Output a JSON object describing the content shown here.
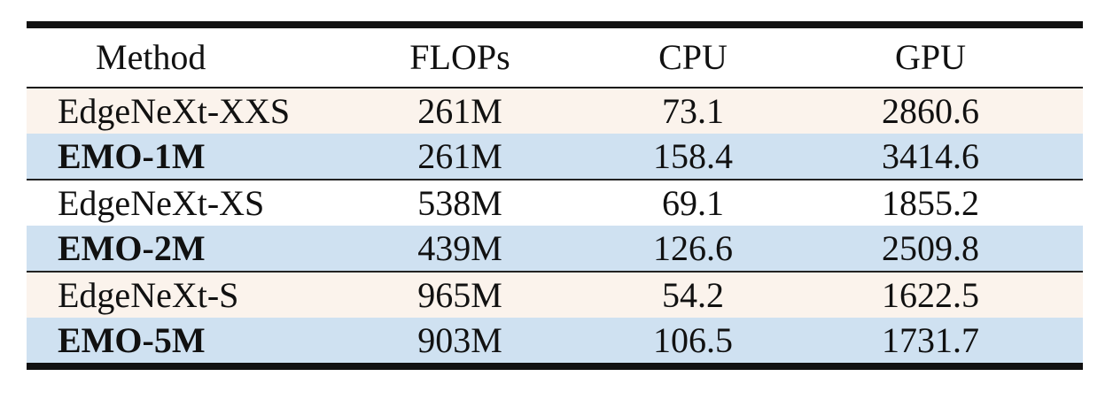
{
  "columns": [
    "Method",
    "FLOPs",
    "CPU",
    "GPU"
  ],
  "rows": [
    {
      "method": "EdgeNeXt-XXS",
      "flops": "261M",
      "cpu": "73.1",
      "gpu": "2860.6",
      "bold": false,
      "bg": "#fbf3ec"
    },
    {
      "method": "EMO-1M",
      "flops": "261M",
      "cpu": "158.4",
      "gpu": "3414.6",
      "bold": true,
      "bg": "#cfe1f1"
    },
    {
      "method": "EdgeNeXt-XS",
      "flops": "538M",
      "cpu": "69.1",
      "gpu": "1855.2",
      "bold": false,
      "bg": "#ffffff"
    },
    {
      "method": "EMO-2M",
      "flops": "439M",
      "cpu": "126.6",
      "gpu": "2509.8",
      "bold": true,
      "bg": "#cfe1f1"
    },
    {
      "method": "EdgeNeXt-S",
      "flops": "965M",
      "cpu": "54.2",
      "gpu": "1622.5",
      "bold": false,
      "bg": "#fbf3ec"
    },
    {
      "method": "EMO-5M",
      "flops": "903M",
      "cpu": "106.5",
      "gpu": "1731.7",
      "bold": true,
      "bg": "#cfe1f1"
    }
  ]
}
